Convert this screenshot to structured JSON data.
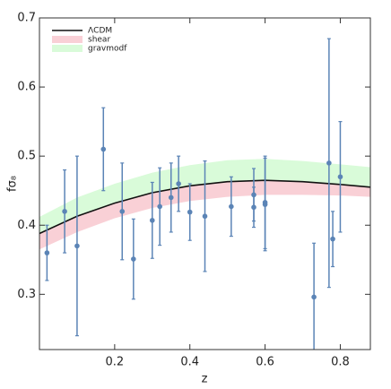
{
  "chart_data": {
    "type": "scatter",
    "xlabel": "z",
    "ylabel": "fσ₈",
    "xlim": [
      0,
      0.88
    ],
    "ylim": [
      0.22,
      0.7
    ],
    "xticks": [
      0.2,
      0.4,
      0.6,
      0.8
    ],
    "yticks": [
      0.3,
      0.4,
      0.5,
      0.6,
      0.7
    ],
    "legend": "upper left",
    "series": [
      {
        "name": "gravmodf",
        "type": "band",
        "color": "#d9fbd9",
        "x": [
          0,
          0.1,
          0.2,
          0.3,
          0.4,
          0.5,
          0.6,
          0.7,
          0.8,
          0.88
        ],
        "lower": [
          0.388,
          0.413,
          0.432,
          0.447,
          0.457,
          0.463,
          0.465,
          0.463,
          0.459,
          0.455
        ],
        "upper": [
          0.412,
          0.44,
          0.46,
          0.476,
          0.487,
          0.494,
          0.496,
          0.493,
          0.488,
          0.484
        ]
      },
      {
        "name": "shear",
        "type": "band",
        "color": "#f9d0d6",
        "x": [
          0,
          0.1,
          0.2,
          0.3,
          0.4,
          0.5,
          0.6,
          0.7,
          0.8,
          0.88
        ],
        "lower": [
          0.365,
          0.39,
          0.41,
          0.425,
          0.435,
          0.441,
          0.444,
          0.444,
          0.443,
          0.441
        ],
        "upper": [
          0.388,
          0.413,
          0.432,
          0.447,
          0.457,
          0.463,
          0.465,
          0.463,
          0.459,
          0.455
        ]
      },
      {
        "name": "ΛCDM",
        "type": "line",
        "color": "#111111",
        "x": [
          0,
          0.1,
          0.2,
          0.3,
          0.4,
          0.5,
          0.6,
          0.7,
          0.8,
          0.88
        ],
        "values": [
          0.388,
          0.413,
          0.432,
          0.447,
          0.457,
          0.463,
          0.465,
          0.463,
          0.459,
          0.455
        ]
      },
      {
        "type": "errorbar",
        "color": "#5b84b6",
        "x": [
          0.02,
          0.067,
          0.1,
          0.17,
          0.22,
          0.25,
          0.3,
          0.32,
          0.35,
          0.37,
          0.4,
          0.44,
          0.51,
          0.57,
          0.57,
          0.6,
          0.6,
          0.73,
          0.77,
          0.78,
          0.8
        ],
        "values": [
          0.36,
          0.42,
          0.37,
          0.51,
          0.42,
          0.351,
          0.407,
          0.427,
          0.44,
          0.46,
          0.419,
          0.413,
          0.427,
          0.426,
          0.444,
          0.43,
          0.433,
          0.296,
          0.49,
          0.38,
          0.47
        ],
        "errors": [
          0.04,
          0.06,
          0.13,
          0.06,
          0.07,
          0.058,
          0.055,
          0.056,
          0.05,
          0.04,
          0.041,
          0.08,
          0.043,
          0.029,
          0.038,
          0.067,
          0.067,
          0.078,
          0.18,
          0.04,
          0.08
        ]
      }
    ]
  }
}
